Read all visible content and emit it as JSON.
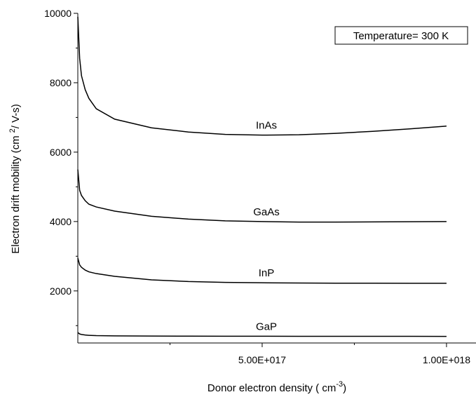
{
  "chart_data": {
    "type": "line",
    "ylabel": {
      "text": "Electron drift mobility (cm",
      "sup": "2",
      "end": "/ V-s)"
    },
    "xlabel": {
      "text": "Donor electron density ( cm",
      "sup": "-3",
      "end": ")"
    },
    "annotation": "Temperature= 300 K",
    "x": [
      0,
      5000000000000000.0,
      1e+16,
      2e+16,
      3e+16,
      5e+16,
      1e+17,
      2e+17,
      3e+17,
      4e+17,
      5e+17,
      6e+17,
      7e+17,
      8e+17,
      9e+17,
      1e+18
    ],
    "series": [
      {
        "name": "InAs",
        "color": "#000000",
        "values": [
          9900,
          8700,
          8200,
          7800,
          7550,
          7250,
          6950,
          6700,
          6580,
          6510,
          6490,
          6500,
          6540,
          6600,
          6670,
          6750
        ]
      },
      {
        "name": "GaAs",
        "color": "#000000",
        "values": [
          5500,
          4900,
          4750,
          4600,
          4500,
          4420,
          4300,
          4150,
          4070,
          4020,
          4000,
          3985,
          3985,
          3990,
          3995,
          4000
        ]
      },
      {
        "name": "InP",
        "color": "#000000",
        "values": [
          2950,
          2750,
          2680,
          2600,
          2550,
          2500,
          2420,
          2320,
          2270,
          2245,
          2235,
          2228,
          2224,
          2222,
          2220,
          2220
        ]
      },
      {
        "name": "GaP",
        "color": "#000000",
        "values": [
          800,
          760,
          745,
          730,
          720,
          712,
          705,
          700,
          697,
          695,
          694,
          693,
          692,
          692,
          691,
          690
        ]
      }
    ],
    "xlim": [
      0,
      1.08e+18
    ],
    "xticks": [
      {
        "value": 5e+17,
        "label": "5.00E+017"
      },
      {
        "value": 1e+18,
        "label": "1.00E+018"
      }
    ],
    "xminor_ticks": [
      2.5e+17,
      7.5e+17
    ],
    "ylim": [
      500,
      10000
    ],
    "yticks": [
      2000,
      4000,
      6000,
      8000,
      10000
    ],
    "yminor_ticks": [
      1000,
      3000,
      5000,
      7000,
      9000
    ],
    "grid": false
  }
}
